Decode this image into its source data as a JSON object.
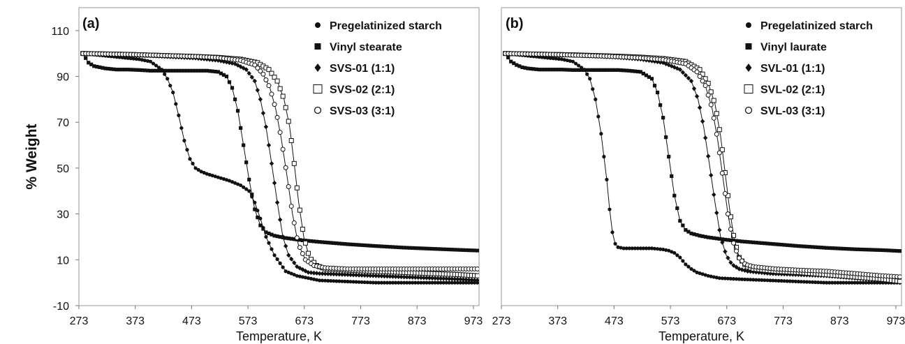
{
  "chart_data": [
    {
      "type": "line",
      "panel_label": "(a)",
      "xlabel": "Temperature, K",
      "ylabel": "% Weight",
      "xlim": [
        273,
        983
      ],
      "ylim": [
        -10,
        120
      ],
      "xticks": [
        273,
        373,
        473,
        573,
        673,
        773,
        873,
        973
      ],
      "yticks": [
        -10,
        10,
        30,
        50,
        70,
        90,
        110
      ],
      "legend_position": "top-right",
      "series": [
        {
          "name": "Pregelatinized starch",
          "marker": "filled-circle",
          "x": [
            280,
            300,
            320,
            340,
            360,
            380,
            400,
            420,
            430,
            440,
            450,
            460,
            470,
            480,
            490,
            500,
            520,
            540,
            560,
            575,
            585,
            595,
            605,
            620,
            640,
            660,
            680,
            700,
            750,
            800,
            850,
            900,
            950,
            983
          ],
          "y": [
            100,
            99.5,
            99,
            98.5,
            98,
            97.5,
            96.5,
            93,
            89,
            83,
            73,
            62,
            54,
            50,
            48.5,
            47.5,
            46,
            44.5,
            42.5,
            40,
            35,
            28,
            20,
            12,
            5,
            3,
            2,
            1,
            0.5,
            0,
            0,
            0,
            0,
            0
          ]
        },
        {
          "name": "Vinyl stearate",
          "marker": "filled-square",
          "x": [
            280,
            290,
            300,
            310,
            320,
            340,
            360,
            380,
            400,
            420,
            440,
            460,
            480,
            500,
            520,
            535,
            545,
            555,
            565,
            575,
            585,
            595,
            605,
            620,
            640,
            670,
            700,
            750,
            800,
            850,
            900,
            950,
            983
          ],
          "y": [
            100,
            96,
            94.5,
            94,
            93.5,
            93,
            93,
            92.8,
            92.5,
            92.5,
            92.5,
            92.5,
            92.5,
            92.5,
            92,
            90,
            85,
            75,
            60,
            45,
            32,
            25,
            22,
            20.5,
            19.5,
            18.5,
            17.8,
            16.8,
            16,
            15.3,
            14.8,
            14.3,
            14
          ]
        },
        {
          "name": "SVS-01 (1:1)",
          "marker": "filled-diamond",
          "x": [
            280,
            320,
            360,
            400,
            440,
            480,
            520,
            550,
            570,
            585,
            595,
            605,
            615,
            625,
            635,
            645,
            660,
            680,
            700,
            750,
            800,
            850,
            900,
            950,
            983
          ],
          "y": [
            100,
            99.8,
            99.5,
            99,
            98.5,
            98,
            97,
            95.5,
            93,
            88,
            80,
            68,
            52,
            35,
            20,
            12,
            7,
            4.5,
            4,
            3.5,
            3,
            2.5,
            2,
            1.5,
            1
          ]
        },
        {
          "name": "SVS-02 (2:1)",
          "marker": "open-square",
          "x": [
            280,
            320,
            360,
            400,
            440,
            480,
            520,
            560,
            590,
            610,
            625,
            637,
            647,
            655,
            663,
            672,
            682,
            695,
            710,
            750,
            800,
            850,
            900,
            950,
            983
          ],
          "y": [
            100,
            99.8,
            99.6,
            99.3,
            99,
            98.7,
            98.3,
            97.5,
            96,
            93,
            88,
            80,
            68,
            52,
            35,
            20,
            11,
            7.5,
            6,
            5.5,
            5,
            4.5,
            4,
            3.5,
            3
          ]
        },
        {
          "name": "SVS-03 (3:1)",
          "marker": "open-circle",
          "x": [
            280,
            320,
            360,
            400,
            440,
            480,
            520,
            560,
            585,
            600,
            612,
            622,
            632,
            642,
            652,
            662,
            675,
            690,
            710,
            750,
            800,
            850,
            900,
            950,
            983
          ],
          "y": [
            100,
            99.8,
            99.6,
            99.3,
            99,
            98.7,
            98.2,
            97,
            95,
            91,
            85,
            76,
            63,
            47,
            30,
            17,
            10,
            7.5,
            6.5,
            6,
            6,
            6,
            6,
            6,
            6
          ]
        }
      ]
    },
    {
      "type": "line",
      "panel_label": "(b)",
      "xlabel": "Temperature, K",
      "ylabel": "",
      "xlim": [
        273,
        983
      ],
      "ylim": [
        -10,
        120
      ],
      "xticks": [
        273,
        373,
        473,
        573,
        673,
        773,
        873,
        973
      ],
      "yticks": [],
      "legend_position": "top-right",
      "series": [
        {
          "name": "Pregelatinized starch",
          "marker": "filled-circle",
          "x": [
            280,
            300,
            320,
            340,
            360,
            380,
            400,
            420,
            430,
            440,
            450,
            460,
            465,
            470,
            475,
            480,
            490,
            500,
            520,
            540,
            560,
            570,
            580,
            590,
            600,
            610,
            620,
            640,
            660,
            700,
            750,
            800,
            850,
            900,
            950,
            983
          ],
          "y": [
            100,
            99.5,
            99,
            98.5,
            98,
            97.5,
            96.5,
            93,
            89,
            80,
            65,
            45,
            32,
            22,
            17,
            15.5,
            15,
            15,
            15,
            15,
            14.5,
            14,
            13,
            11,
            8,
            6,
            4.5,
            3,
            2,
            1.5,
            1,
            0.5,
            0,
            0,
            0,
            0
          ]
        },
        {
          "name": "Vinyl laurate",
          "marker": "filled-square",
          "x": [
            280,
            290,
            300,
            310,
            320,
            340,
            360,
            380,
            400,
            420,
            440,
            460,
            480,
            500,
            520,
            540,
            550,
            560,
            570,
            580,
            590,
            600,
            610,
            625,
            640,
            670,
            700,
            750,
            800,
            850,
            900,
            950,
            983
          ],
          "y": [
            100,
            96.5,
            95,
            94,
            93.5,
            93,
            93,
            93,
            92.8,
            92.8,
            92.8,
            92.8,
            92.8,
            92.5,
            92,
            89,
            83,
            72,
            55,
            38,
            27,
            23,
            21.5,
            20.5,
            19.8,
            18.8,
            18,
            17,
            16,
            15.2,
            14.6,
            14.2,
            13.8
          ]
        },
        {
          "name": "SVL-01 (1:1)",
          "marker": "filled-diamond",
          "x": [
            280,
            320,
            360,
            400,
            440,
            480,
            520,
            560,
            590,
            610,
            622,
            632,
            642,
            652,
            662,
            672,
            682,
            695,
            710,
            750,
            800,
            850,
            900,
            950,
            983
          ],
          "y": [
            100,
            99.8,
            99.5,
            99.2,
            98.8,
            98.3,
            97.5,
            96,
            93,
            88,
            80,
            68,
            52,
            35,
            20,
            12,
            8,
            6,
            5,
            4,
            3.5,
            3,
            2,
            1,
            0
          ]
        },
        {
          "name": "SVL-02 (2:1)",
          "marker": "open-square",
          "x": [
            280,
            320,
            360,
            400,
            440,
            480,
            520,
            560,
            600,
            625,
            640,
            652,
            662,
            670,
            678,
            686,
            695,
            708,
            720,
            760,
            800,
            850,
            900,
            950,
            983
          ],
          "y": [
            100,
            99.8,
            99.6,
            99.4,
            99.1,
            98.8,
            98.4,
            97.8,
            96.5,
            93,
            87,
            78,
            64,
            48,
            32,
            19,
            11,
            7,
            6,
            5,
            4.5,
            3.5,
            2.5,
            1.5,
            0.5
          ]
        },
        {
          "name": "SVL-03 (3:1)",
          "marker": "open-circle",
          "x": [
            280,
            320,
            360,
            400,
            440,
            480,
            520,
            560,
            600,
            620,
            635,
            647,
            657,
            666,
            675,
            684,
            694,
            706,
            720,
            760,
            800,
            850,
            900,
            950,
            983
          ],
          "y": [
            100,
            99.8,
            99.6,
            99.3,
            99,
            98.6,
            98.1,
            97.3,
            95.5,
            92,
            86,
            76,
            62,
            46,
            30,
            18,
            11,
            8,
            7,
            6,
            5.5,
            5,
            4,
            3,
            2.5
          ]
        }
      ]
    }
  ]
}
